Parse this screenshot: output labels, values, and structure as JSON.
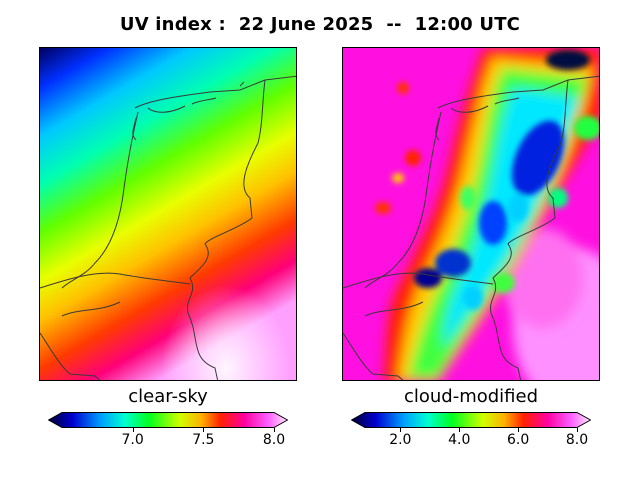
{
  "figure": {
    "title": "UV index :  22 June 2025  --  12:00 UTC"
  },
  "panels": [
    {
      "label": "clear-sky",
      "colorbar": {
        "ticks": [
          "7.0",
          "7.5",
          "8.0"
        ],
        "tick_values": [
          7.0,
          7.5,
          8.0
        ],
        "range": [
          6.5,
          8.0
        ],
        "colormap": "gist_ncar"
      }
    },
    {
      "label": "cloud-modified",
      "colorbar": {
        "ticks": [
          "2.0",
          "4.0",
          "6.0",
          "8.0"
        ],
        "tick_values": [
          2.0,
          4.0,
          6.0,
          8.0
        ],
        "range": [
          0.8,
          8.0
        ],
        "colormap": "gist_ncar"
      }
    }
  ],
  "colors": {
    "border": "#000000",
    "coastline": "#3a3a3a"
  }
}
